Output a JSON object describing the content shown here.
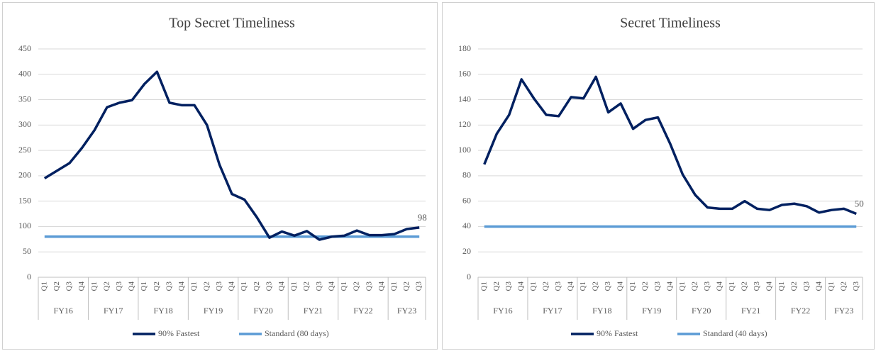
{
  "chart_data": [
    {
      "type": "line",
      "title": "Top Secret Timeliness",
      "category_groups": [
        {
          "label": "FY16",
          "categories": [
            "Q1",
            "Q2",
            "Q3",
            "Q4"
          ]
        },
        {
          "label": "FY17",
          "categories": [
            "Q1",
            "Q2",
            "Q3",
            "Q4"
          ]
        },
        {
          "label": "FY18",
          "categories": [
            "Q1",
            "Q2",
            "Q3",
            "Q4"
          ]
        },
        {
          "label": "FY19",
          "categories": [
            "Q1",
            "Q2",
            "Q3",
            "Q4"
          ]
        },
        {
          "label": "FY20",
          "categories": [
            "Q1",
            "Q2",
            "Q3",
            "Q4"
          ]
        },
        {
          "label": "FY21",
          "categories": [
            "Q1",
            "Q2",
            "Q3",
            "Q4"
          ]
        },
        {
          "label": "FY22",
          "categories": [
            "Q1",
            "Q2",
            "Q3",
            "Q4"
          ]
        },
        {
          "label": "FY23",
          "categories": [
            "Q1",
            "Q2",
            "Q3"
          ]
        }
      ],
      "series": [
        {
          "name": "90% Fastest",
          "color": "#002060",
          "label_last": true,
          "values": [
            195,
            210,
            225,
            255,
            290,
            335,
            344,
            349,
            381,
            405,
            344,
            339,
            339,
            300,
            222,
            164,
            153,
            118,
            78,
            90,
            82,
            91,
            74,
            80,
            82,
            92,
            83,
            83,
            85,
            95,
            98
          ]
        },
        {
          "name": "Standard (80 days)",
          "color": "#5b9bd5",
          "values": [
            80,
            80,
            80,
            80,
            80,
            80,
            80,
            80,
            80,
            80,
            80,
            80,
            80,
            80,
            80,
            80,
            80,
            80,
            80,
            80,
            80,
            80,
            80,
            80,
            80,
            80,
            80,
            80,
            80,
            80,
            80
          ]
        }
      ],
      "ylim": [
        0,
        450
      ],
      "yticks": [
        0,
        50,
        100,
        150,
        200,
        250,
        300,
        350,
        400,
        450
      ],
      "grid": true,
      "legend": "bottom"
    },
    {
      "type": "line",
      "title": "Secret Timeliness",
      "category_groups": [
        {
          "label": "FY16",
          "categories": [
            "Q1",
            "Q2",
            "Q3",
            "Q4"
          ]
        },
        {
          "label": "FY17",
          "categories": [
            "Q1",
            "Q2",
            "Q3",
            "Q4"
          ]
        },
        {
          "label": "FY18",
          "categories": [
            "Q1",
            "Q2",
            "Q3",
            "Q4"
          ]
        },
        {
          "label": "FY19",
          "categories": [
            "Q1",
            "Q2",
            "Q3",
            "Q4"
          ]
        },
        {
          "label": "FY20",
          "categories": [
            "Q1",
            "Q2",
            "Q3",
            "Q4"
          ]
        },
        {
          "label": "FY21",
          "categories": [
            "Q1",
            "Q2",
            "Q3",
            "Q4"
          ]
        },
        {
          "label": "FY22",
          "categories": [
            "Q1",
            "Q2",
            "Q3",
            "Q4"
          ]
        },
        {
          "label": "FY23",
          "categories": [
            "Q1",
            "Q2",
            "Q3"
          ]
        }
      ],
      "series": [
        {
          "name": "90% Fastest",
          "color": "#002060",
          "label_last": true,
          "values": [
            89,
            113,
            128,
            156,
            141,
            128,
            127,
            142,
            141,
            158,
            130,
            137,
            117,
            124,
            126,
            105,
            81,
            65,
            55,
            54,
            54,
            60,
            54,
            53,
            57,
            58,
            56,
            51,
            53,
            54,
            50
          ]
        },
        {
          "name": "Standard (40 days)",
          "color": "#5b9bd5",
          "values": [
            40,
            40,
            40,
            40,
            40,
            40,
            40,
            40,
            40,
            40,
            40,
            40,
            40,
            40,
            40,
            40,
            40,
            40,
            40,
            40,
            40,
            40,
            40,
            40,
            40,
            40,
            40,
            40,
            40,
            40,
            40
          ]
        }
      ],
      "ylim": [
        0,
        180
      ],
      "yticks": [
        0,
        20,
        40,
        60,
        80,
        100,
        120,
        140,
        160,
        180
      ],
      "grid": true,
      "legend": "bottom"
    }
  ]
}
